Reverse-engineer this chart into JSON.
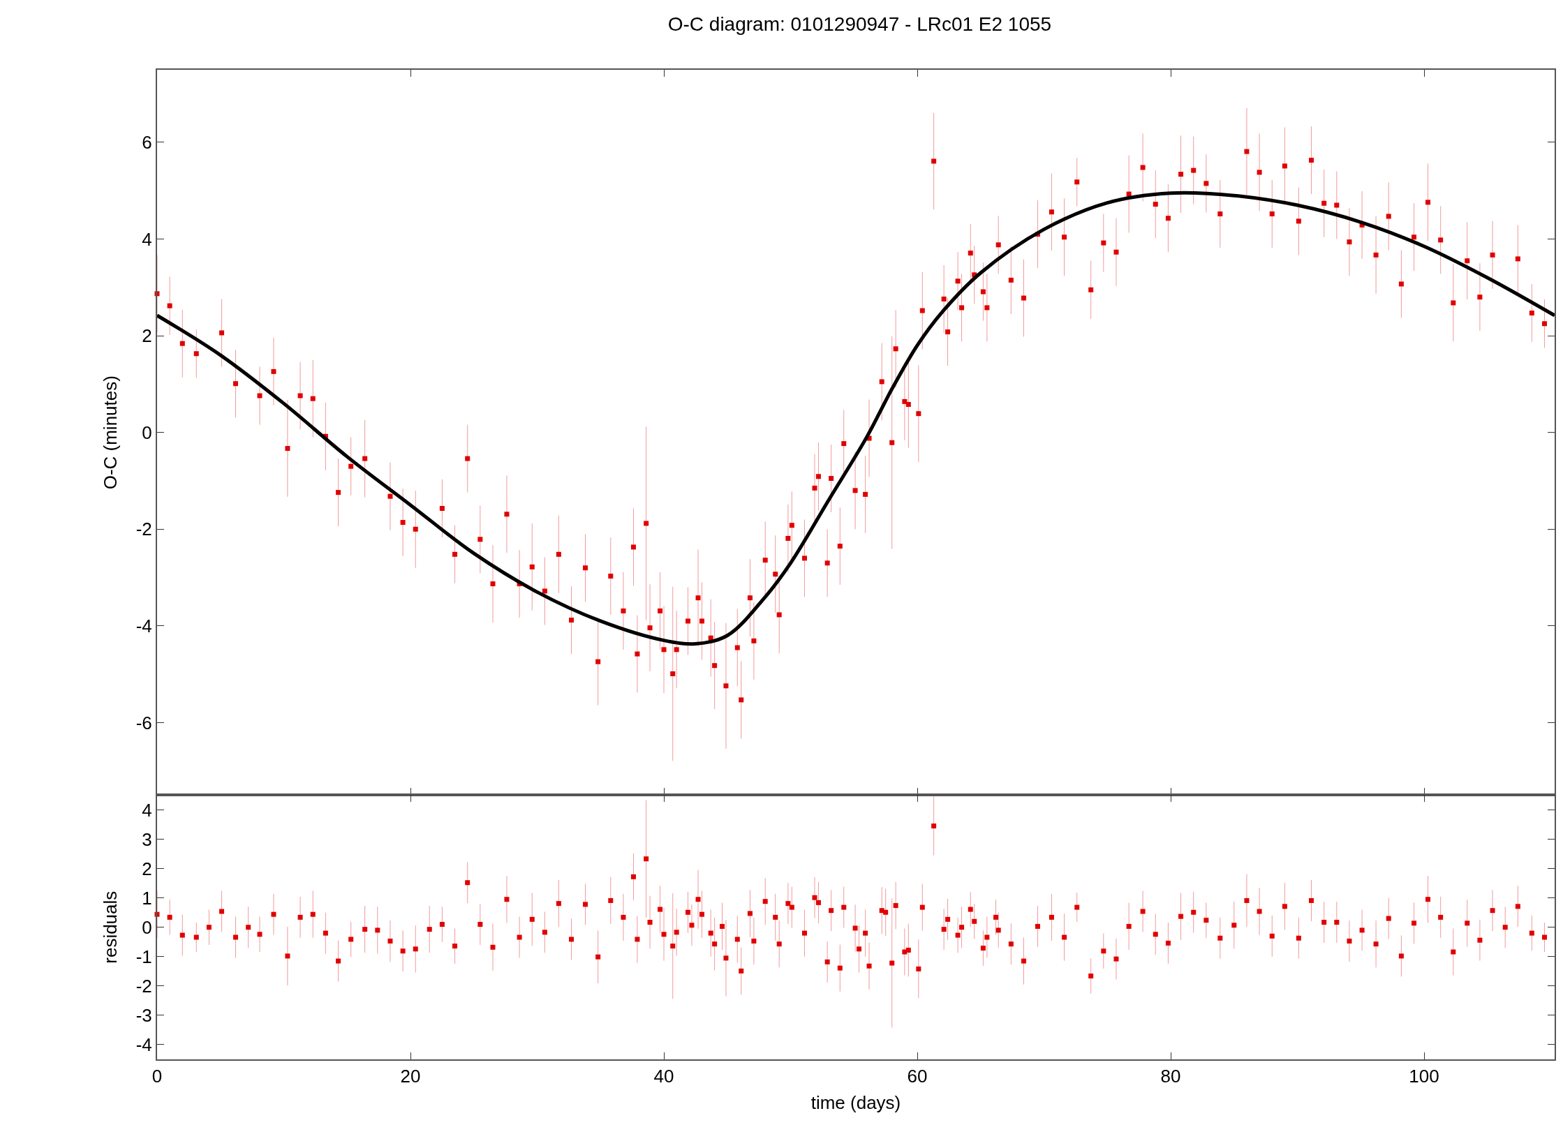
{
  "chart_data": [
    {
      "type": "scatter",
      "title": "O-C diagram: 0101290947 - LRc01 E2 1055",
      "ylabel": "O-C (minutes)",
      "xlim": [
        0,
        110.3
      ],
      "xticks": [
        0,
        20,
        40,
        60,
        80,
        100
      ],
      "ylim": [
        -7.5,
        7.5
      ],
      "yticks": [
        -6,
        -4,
        -2,
        0,
        2,
        4,
        6
      ],
      "tick_labels": "y",
      "series": [
        {
          "color": "#e00000",
          "marker": "square",
          "x": [
            0,
            1.0,
            2.0,
            3.1,
            5.1,
            6.2,
            8.1,
            9.2,
            10.3,
            11.3,
            12.3,
            13.3,
            14.3,
            15.3,
            16.4,
            18.4,
            19.4,
            20.4,
            22.5,
            23.5,
            24.5,
            25.5,
            26.5,
            27.6,
            28.6,
            29.6,
            30.6,
            31.7,
            32.7,
            33.8,
            34.8,
            35.8,
            36.8,
            37.6,
            37.9,
            38.6,
            38.9,
            39.7,
            40.0,
            40.7,
            41.0,
            41.9,
            42.7,
            43.0,
            43.7,
            44.0,
            44.9,
            45.8,
            46.1,
            46.8,
            47.1,
            48.0,
            48.8,
            49.1,
            49.8,
            50.1,
            51.1,
            51.9,
            52.2,
            52.9,
            53.2,
            53.9,
            54.2,
            55.1,
            55.9,
            56.2,
            57.2,
            58.0,
            58.3,
            59.0,
            59.3,
            60.1,
            60.4,
            61.3,
            62.1,
            62.4,
            63.2,
            63.5,
            64.2,
            64.5,
            65.2,
            65.5,
            66.4,
            67.4,
            68.4,
            69.5,
            70.6,
            71.6,
            72.6,
            73.7,
            74.7,
            75.7,
            76.7,
            77.8,
            78.8,
            79.8,
            80.8,
            81.8,
            82.8,
            83.9,
            86.0,
            87.0,
            88.0,
            89.0,
            90.1,
            91.1,
            92.1,
            93.1,
            94.1,
            95.1,
            96.2,
            97.2,
            98.2,
            99.2,
            100.3,
            101.3,
            102.3,
            103.4,
            104.4,
            105.4,
            107.4,
            108.5,
            109.5
          ],
          "values": [
            2.87,
            2.62,
            1.84,
            1.63,
            2.06,
            1.01,
            0.76,
            1.26,
            -0.33,
            0.76,
            0.7,
            -0.08,
            -1.24,
            -0.7,
            -0.54,
            -1.32,
            -1.86,
            -2.0,
            -1.57,
            -2.52,
            -0.54,
            -2.21,
            -3.13,
            -1.69,
            -3.13,
            -2.78,
            -3.28,
            -2.52,
            -3.88,
            -2.8,
            -4.74,
            -2.97,
            -3.69,
            -2.37,
            -4.58,
            -1.88,
            -4.04,
            -3.69,
            -4.49,
            -4.99,
            -4.49,
            -3.9,
            -3.42,
            -3.9,
            -4.25,
            -4.82,
            -5.24,
            -4.45,
            -5.53,
            -3.42,
            -4.31,
            -2.64,
            -2.93,
            -3.77,
            -2.19,
            -1.92,
            -2.6,
            -1.15,
            -0.91,
            -2.7,
            -0.95,
            -2.35,
            -0.23,
            -1.2,
            -1.28,
            -0.12,
            1.05,
            -0.21,
            1.73,
            0.64,
            0.58,
            0.39,
            2.52,
            5.61,
            2.76,
            2.08,
            3.13,
            2.58,
            3.71,
            3.26,
            2.91,
            2.58,
            3.88,
            3.15,
            2.78,
            4.1,
            4.56,
            4.04,
            5.18,
            2.95,
            3.92,
            3.73,
            4.93,
            5.48,
            4.72,
            4.43,
            5.34,
            5.42,
            5.15,
            4.52,
            5.81,
            5.38,
            4.52,
            5.51,
            4.37,
            5.63,
            4.74,
            4.7,
            3.94,
            4.29,
            3.67,
            4.47,
            3.07,
            4.04,
            4.76,
            3.98,
            2.68,
            3.55,
            2.8,
            3.67,
            3.59,
            2.47,
            2.25
          ],
          "errors": [
            0.8,
            0.6,
            0.7,
            0.5,
            0.7,
            0.7,
            0.6,
            0.7,
            1.0,
            0.7,
            0.8,
            0.7,
            0.7,
            0.6,
            0.8,
            0.7,
            0.7,
            0.8,
            0.6,
            0.6,
            0.7,
            0.7,
            0.8,
            0.8,
            0.7,
            0.9,
            0.7,
            0.8,
            0.7,
            0.7,
            0.9,
            0.8,
            0.8,
            0.8,
            0.8,
            2.0,
            0.9,
            0.8,
            0.9,
            1.8,
            0.8,
            0.7,
            1.0,
            0.8,
            0.8,
            0.9,
            1.3,
            0.8,
            0.8,
            0.8,
            0.8,
            0.8,
            0.8,
            0.8,
            0.7,
            0.7,
            0.8,
            0.7,
            0.7,
            0.7,
            0.7,
            0.8,
            0.7,
            0.8,
            0.8,
            0.8,
            0.8,
            2.2,
            0.8,
            0.8,
            0.9,
            1.0,
            0.8,
            1.0,
            0.7,
            0.7,
            0.6,
            0.7,
            0.6,
            0.6,
            0.6,
            0.7,
            0.6,
            0.7,
            0.8,
            0.7,
            0.8,
            0.8,
            0.5,
            0.6,
            0.6,
            0.7,
            0.8,
            0.7,
            0.7,
            0.7,
            0.8,
            0.7,
            0.6,
            0.7,
            0.9,
            0.8,
            0.7,
            0.8,
            0.7,
            0.7,
            0.7,
            0.7,
            0.7,
            0.7,
            0.8,
            0.7,
            0.7,
            0.7,
            0.8,
            0.7,
            0.8,
            0.8,
            0.7,
            0.7,
            0.7,
            0.6,
            0.5
          ]
        },
        {
          "type": "line",
          "color": "#000000",
          "x": [
            0,
            5,
            10,
            15,
            20,
            25,
            30,
            35,
            40,
            42.5,
            45,
            48,
            50,
            53,
            56,
            58,
            60,
            62,
            65,
            70,
            75,
            80,
            85,
            90,
            95,
            100,
            105,
            110.3
          ],
          "values": [
            2.42,
            1.6,
            0.6,
            -0.5,
            -1.5,
            -2.5,
            -3.3,
            -3.9,
            -4.3,
            -4.37,
            -4.2,
            -3.4,
            -2.7,
            -1.4,
            -0.1,
            0.9,
            1.8,
            2.5,
            3.3,
            4.2,
            4.75,
            4.95,
            4.9,
            4.7,
            4.35,
            3.85,
            3.2,
            2.42
          ]
        }
      ]
    },
    {
      "type": "scatter",
      "xlabel": "time (days)",
      "ylabel": "residuals",
      "xlim": [
        0,
        110.3
      ],
      "xticks": [
        0,
        20,
        40,
        60,
        80,
        100
      ],
      "ylim": [
        -4.5,
        4.5
      ],
      "yticks": [
        -4,
        -3,
        -2,
        -1,
        0,
        1,
        2,
        3,
        4
      ],
      "series": [
        {
          "color": "#e00000",
          "marker": "square",
          "x": [
            0,
            1.0,
            2.0,
            3.1,
            4.1,
            5.1,
            6.2,
            7.2,
            8.1,
            9.2,
            10.3,
            11.3,
            12.3,
            13.3,
            14.3,
            15.3,
            16.4,
            17.4,
            18.4,
            19.4,
            20.4,
            21.5,
            22.5,
            23.5,
            24.5,
            25.5,
            26.5,
            27.6,
            28.6,
            29.6,
            30.6,
            31.7,
            32.7,
            33.8,
            34.8,
            35.8,
            36.8,
            37.6,
            37.9,
            38.6,
            38.9,
            39.7,
            40.0,
            40.7,
            41.0,
            41.9,
            42.2,
            42.7,
            43.0,
            43.7,
            44.0,
            44.6,
            44.9,
            45.8,
            46.1,
            46.8,
            47.1,
            48.0,
            48.8,
            49.1,
            49.8,
            50.1,
            51.1,
            51.9,
            52.2,
            52.9,
            53.2,
            53.9,
            54.2,
            55.1,
            55.4,
            55.9,
            56.2,
            57.2,
            57.5,
            58.0,
            58.3,
            59.0,
            59.3,
            60.1,
            60.4,
            61.3,
            62.1,
            62.4,
            63.2,
            63.5,
            64.2,
            64.5,
            65.2,
            65.5,
            66.2,
            66.4,
            67.4,
            68.4,
            69.5,
            70.6,
            71.6,
            72.6,
            73.7,
            74.7,
            75.7,
            76.7,
            77.8,
            78.8,
            79.8,
            80.8,
            81.8,
            82.8,
            83.9,
            85.0,
            86.0,
            87.0,
            88.0,
            89.0,
            90.1,
            91.1,
            92.1,
            93.1,
            94.1,
            95.1,
            96.2,
            97.2,
            98.2,
            99.2,
            100.3,
            101.3,
            102.3,
            103.4,
            104.4,
            105.4,
            106.4,
            107.4,
            108.5,
            109.5
          ],
          "values": [
            0.44,
            0.34,
            -0.27,
            -0.34,
            0,
            0.54,
            -0.34,
            0,
            -0.24,
            0.44,
            -0.98,
            0.34,
            0.44,
            -0.2,
            -1.15,
            -0.41,
            -0.07,
            -0.1,
            -0.47,
            -0.81,
            -0.74,
            -0.07,
            0.1,
            -0.64,
            1.52,
            0.1,
            -0.68,
            0.95,
            -0.34,
            0.27,
            -0.17,
            0.81,
            -0.41,
            0.78,
            -1.01,
            0.91,
            0.34,
            1.72,
            -0.41,
            2.33,
            0.17,
            0.61,
            -0.24,
            -0.64,
            -0.17,
            0.51,
            0.07,
            0.95,
            0.44,
            -0.2,
            -0.57,
            0.03,
            -1.05,
            -0.41,
            -1.49,
            0.47,
            -0.47,
            0.88,
            0.34,
            -0.57,
            0.81,
            0.68,
            -0.2,
            1.01,
            0.84,
            -1.18,
            0.57,
            -1.39,
            0.68,
            -0.03,
            -0.74,
            -0.2,
            -1.32,
            0.57,
            0.51,
            -1.22,
            0.74,
            -0.84,
            -0.78,
            -1.42,
            0.68,
            3.45,
            -0.07,
            0.27,
            -0.27,
            0,
            0.61,
            0.2,
            -0.71,
            -0.34,
            0.34,
            -0.1,
            -0.57,
            -1.15,
            0.03,
            0.34,
            -0.34,
            0.68,
            -1.66,
            -0.81,
            -1.08,
            0.03,
            0.54,
            -0.24,
            -0.54,
            0.37,
            0.51,
            0.24,
            -0.37,
            0.07,
            0.91,
            0.54,
            -0.3,
            0.71,
            -0.37,
            0.91,
            0.17,
            0.17,
            -0.47,
            -0.1,
            -0.57,
            0.3,
            -0.98,
            0.14,
            0.95,
            0.34,
            -0.84,
            0.14,
            -0.44,
            0.57,
            0,
            0.71,
            -0.2,
            -0.34
          ],
          "errors": [
            0.8,
            0.6,
            0.7,
            0.5,
            0.6,
            0.7,
            0.7,
            0.7,
            0.6,
            0.7,
            1.0,
            0.7,
            0.8,
            0.7,
            0.7,
            0.6,
            0.8,
            0.8,
            0.7,
            0.7,
            0.8,
            0.8,
            0.6,
            0.6,
            0.7,
            0.7,
            0.8,
            0.8,
            0.7,
            0.9,
            0.7,
            0.8,
            0.7,
            0.7,
            0.9,
            0.8,
            0.8,
            0.8,
            0.8,
            2.0,
            0.9,
            0.8,
            0.9,
            1.8,
            0.8,
            0.7,
            0.7,
            1.0,
            0.8,
            0.8,
            0.9,
            0.8,
            1.3,
            0.8,
            0.8,
            0.8,
            0.8,
            0.8,
            0.8,
            0.8,
            0.7,
            0.7,
            0.8,
            0.7,
            0.7,
            0.7,
            0.7,
            0.8,
            0.7,
            0.8,
            0.8,
            0.8,
            0.8,
            0.8,
            0.8,
            2.2,
            0.8,
            0.8,
            0.9,
            1.0,
            0.8,
            1.0,
            0.7,
            0.7,
            0.6,
            0.7,
            0.6,
            0.6,
            0.6,
            0.7,
            0.6,
            0.6,
            0.7,
            0.8,
            0.7,
            0.8,
            0.8,
            0.5,
            0.6,
            0.6,
            0.7,
            0.8,
            0.7,
            0.7,
            0.7,
            0.8,
            0.7,
            0.6,
            0.7,
            0.8,
            0.9,
            0.8,
            0.7,
            0.8,
            0.7,
            0.7,
            0.7,
            0.7,
            0.7,
            0.7,
            0.8,
            0.7,
            0.7,
            0.7,
            0.8,
            0.7,
            0.8,
            0.8,
            0.7,
            0.7,
            0.7,
            0.7,
            0.6,
            0.5
          ]
        }
      ]
    }
  ]
}
